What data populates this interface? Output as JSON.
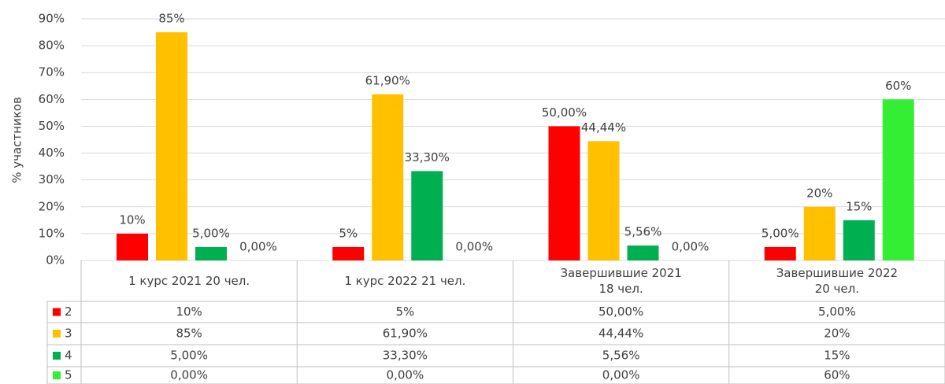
{
  "chart_data": {
    "type": "bar",
    "y_label": "% участников",
    "categories": [
      "1 курс 2021  20 чел.",
      "1 курс 2022   21 чел.",
      "Завершившие 2021\n18 чел.",
      "Завершившие 2022\n20 чел."
    ],
    "series": [
      {
        "name": "2",
        "color": "#ff0000",
        "values": [
          10,
          5,
          50,
          5
        ],
        "value_labels": [
          "10%",
          "5%",
          "50,00%",
          "5,00%"
        ]
      },
      {
        "name": "3",
        "color": "#ffc000",
        "values": [
          85,
          61.9,
          44.44,
          20
        ],
        "value_labels": [
          "85%",
          "61,90%",
          "44,44%",
          "20%"
        ]
      },
      {
        "name": "4",
        "color": "#00b050",
        "values": [
          5,
          33.3,
          5.56,
          15
        ],
        "value_labels": [
          "5,00%",
          "33,30%",
          "5,56%",
          "15%"
        ]
      },
      {
        "name": "5",
        "color": "#33ee33",
        "values": [
          0,
          0,
          0,
          60
        ],
        "value_labels": [
          "0,00%",
          "0,00%",
          "0,00%",
          "60%"
        ]
      }
    ],
    "ylim": [
      0,
      90
    ],
    "yticks": [
      {
        "value": 0,
        "label": "0%"
      },
      {
        "value": 10,
        "label": "10%"
      },
      {
        "value": 20,
        "label": "20%"
      },
      {
        "value": 30,
        "label": "30%"
      },
      {
        "value": 40,
        "label": "40%"
      },
      {
        "value": 50,
        "label": "50%"
      },
      {
        "value": 60,
        "label": "60%"
      },
      {
        "value": 70,
        "label": "70%"
      },
      {
        "value": 80,
        "label": "80%"
      },
      {
        "value": 90,
        "label": "90%"
      }
    ],
    "grid": true
  }
}
